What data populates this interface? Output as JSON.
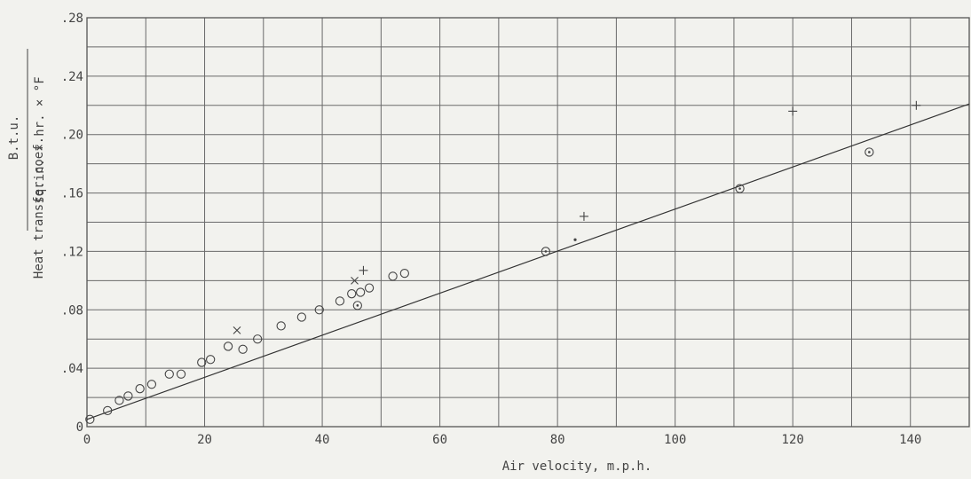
{
  "chart_data": {
    "type": "scatter",
    "x_axis": {
      "label": "Air velocity, m.p.h.",
      "range": [
        0,
        150
      ],
      "ticks": [
        0,
        20,
        40,
        60,
        80,
        100,
        120,
        140
      ],
      "tick_labels": [
        "0",
        "20",
        "40",
        "60",
        "80",
        "100",
        "120",
        "140"
      ],
      "minor_step": 10
    },
    "y_axis": {
      "label_prefix": "Heat transfer coef.",
      "unit_numerator": "B.t.u.",
      "unit_denominator": "sq.in. × hr. × °F",
      "range": [
        0,
        0.28
      ],
      "ticks": [
        0,
        0.04,
        0.08,
        0.12,
        0.16,
        0.2,
        0.24,
        0.28
      ],
      "tick_labels": [
        "0",
        ".04",
        ".08",
        ".12",
        ".16",
        ".20",
        ".24",
        ".28"
      ],
      "minor_step": 0.02
    },
    "grid": true,
    "fit_line": {
      "x": [
        0,
        150
      ],
      "y": [
        0.005,
        0.221
      ]
    },
    "series": [
      {
        "marker": "circle",
        "points": [
          [
            0.5,
            0.005
          ],
          [
            3.5,
            0.011
          ],
          [
            5.5,
            0.018
          ],
          [
            7,
            0.021
          ],
          [
            9,
            0.026
          ],
          [
            11,
            0.029
          ],
          [
            14,
            0.036
          ],
          [
            16,
            0.036
          ],
          [
            19.5,
            0.044
          ],
          [
            21,
            0.046
          ],
          [
            24,
            0.055
          ],
          [
            26.5,
            0.053
          ],
          [
            29,
            0.06
          ],
          [
            33,
            0.069
          ],
          [
            36.5,
            0.075
          ],
          [
            39.5,
            0.08
          ],
          [
            43,
            0.086
          ],
          [
            45,
            0.091
          ],
          [
            46.5,
            0.092
          ],
          [
            48,
            0.095
          ],
          [
            52,
            0.103
          ],
          [
            54,
            0.105
          ]
        ]
      },
      {
        "marker": "circle-dot",
        "points": [
          [
            46,
            0.083
          ],
          [
            78,
            0.12
          ],
          [
            111,
            0.163
          ],
          [
            133,
            0.188
          ]
        ]
      },
      {
        "marker": "plus",
        "points": [
          [
            47,
            0.107
          ],
          [
            84.5,
            0.144
          ],
          [
            120,
            0.216
          ],
          [
            141,
            0.22
          ]
        ]
      },
      {
        "marker": "x",
        "points": [
          [
            25.5,
            0.066
          ],
          [
            45.5,
            0.1
          ]
        ]
      },
      {
        "marker": "dot",
        "points": [
          [
            83,
            0.128
          ]
        ]
      }
    ]
  }
}
